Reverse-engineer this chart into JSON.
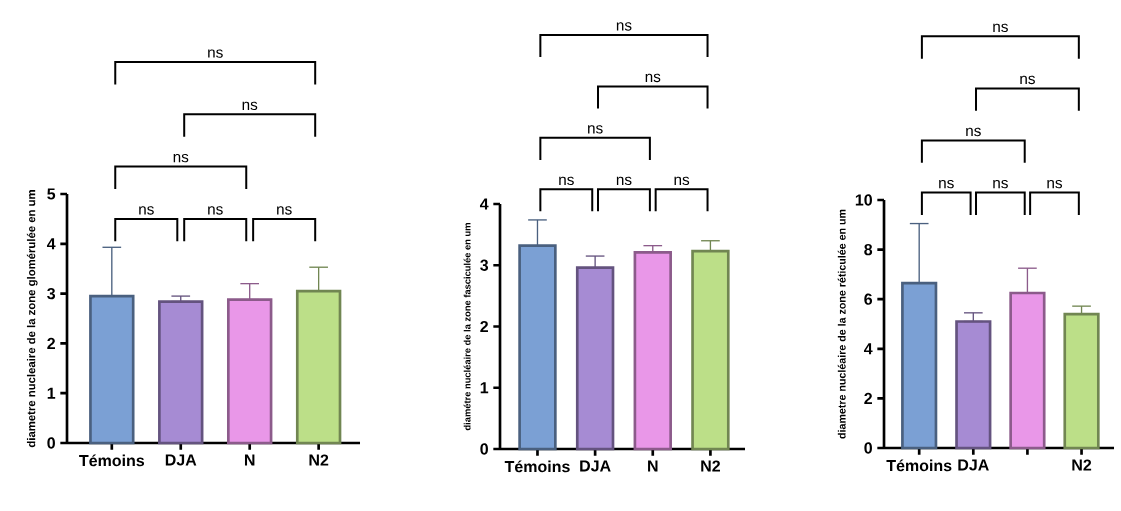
{
  "chart_data": [
    {
      "type": "bar",
      "ylabel": "diametre nucleaire de la zone glomérulée en um",
      "categories": [
        "Témoins",
        "DJA",
        "N",
        "N2"
      ],
      "values": [
        2.95,
        2.84,
        2.88,
        3.05
      ],
      "colors": [
        "#7ba0d4",
        "#a68bd3",
        "#e997e8",
        "#bcdf88"
      ],
      "errors": [
        [
          2.95,
          3.93
        ],
        [
          2.84,
          2.95
        ],
        [
          2.88,
          3.2
        ],
        [
          3.05,
          3.53
        ]
      ],
      "ylim": [
        0,
        5
      ],
      "yticks": [
        0,
        1,
        2,
        3,
        4,
        5
      ],
      "annotations": [
        "ns",
        "ns",
        "ns",
        "ns",
        "ns",
        "ns"
      ]
    },
    {
      "type": "bar",
      "ylabel": "diamétre nucléaire de la zone fasciculée en um",
      "categories": [
        "Témoins",
        "DJA",
        "N",
        "N2"
      ],
      "values": [
        3.32,
        2.96,
        3.21,
        3.23
      ],
      "colors": [
        "#7ba0d4",
        "#a68bd3",
        "#e997e8",
        "#bcdf88"
      ],
      "errors": [
        [
          3.32,
          3.74
        ],
        [
          2.96,
          3.15
        ],
        [
          3.21,
          3.32
        ],
        [
          3.23,
          3.4
        ]
      ],
      "ylim": [
        0,
        4
      ],
      "yticks": [
        0,
        1,
        2,
        3,
        4
      ],
      "annotations": [
        "ns",
        "ns",
        "ns",
        "ns",
        "ns",
        "ns"
      ]
    },
    {
      "type": "bar",
      "ylabel": "diametre nucléaire de la zone réticulée en um",
      "categories": [
        "Témoins",
        "DJA",
        null,
        "N2"
      ],
      "values": [
        6.65,
        5.1,
        6.25,
        5.4
      ],
      "colors": [
        "#7ba0d4",
        "#a68bd3",
        "#e997e8",
        "#bcdf88"
      ],
      "errors": [
        [
          6.65,
          9.05
        ],
        [
          5.1,
          5.45
        ],
        [
          6.25,
          7.25
        ],
        [
          5.4,
          5.72
        ]
      ],
      "ylim": [
        0,
        10
      ],
      "yticks": [
        0,
        2,
        4,
        6,
        8,
        10
      ],
      "annotations": [
        "ns",
        "ns",
        "ns",
        "ns",
        "ns",
        "ns"
      ]
    }
  ]
}
